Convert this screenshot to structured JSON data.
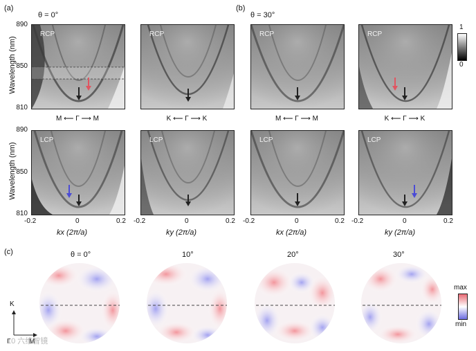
{
  "panels": {
    "a": "(a)",
    "b": "(b)",
    "c": "(c)"
  },
  "headings": {
    "a_theta": "θ = 0°",
    "b_theta": "θ = 30°"
  },
  "polarization": {
    "rcp": "RCP",
    "lcp": "LCP"
  },
  "axes": {
    "y_title": "Wavelength (nm)",
    "y_ticks": [
      "890",
      "850",
      "810"
    ],
    "x_ticks": [
      "-0.2",
      "0",
      "0.2"
    ],
    "x_title_a1": "kx (2π/a)",
    "x_title_a2": "ky (2π/a)",
    "x_title_b1": "kx (2π/a)",
    "x_title_b2": "ky (2π/a)"
  },
  "directions": {
    "a1": "M ⟵ Γ ⟶ M",
    "a2": "K ⟵ Γ ⟶ K",
    "b1": "M ⟵ Γ ⟶ M",
    "b2": "K ⟵ Γ ⟶ K"
  },
  "colorbar_top": {
    "max": "1",
    "min": "0"
  },
  "maps_c": {
    "angles": [
      "θ = 0°",
      "10°",
      "20°",
      "30°"
    ],
    "axis_k": "K",
    "axis_m": "M",
    "axis_gamma": "Γ",
    "colorbar_max": "max",
    "colorbar_min": "min"
  },
  "watermark": "10 六维智镜",
  "colors": {
    "red_arrow": "#e05561",
    "blue_arrow": "#4b4bd6",
    "black_arrow": "#222222"
  }
}
